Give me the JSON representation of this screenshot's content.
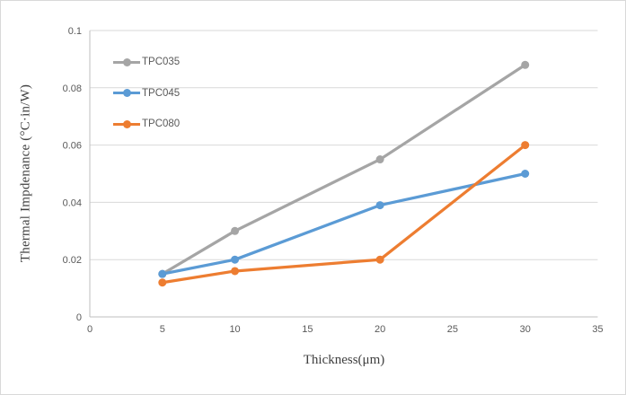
{
  "chart_data": {
    "type": "line",
    "x": [
      5,
      10,
      20,
      30
    ],
    "series": [
      {
        "name": "TPC035",
        "color": "#A5A5A5",
        "values": [
          0.015,
          0.03,
          0.055,
          0.088
        ]
      },
      {
        "name": "TPC045",
        "color": "#5B9BD5",
        "values": [
          0.015,
          0.02,
          0.039,
          0.05
        ]
      },
      {
        "name": "TPC080",
        "color": "#ED7D31",
        "values": [
          0.012,
          0.016,
          0.02,
          0.06
        ]
      }
    ],
    "xlabel": "Thickness(μm)",
    "ylabel": "Thermal Impdenance (°C·in/W)",
    "xlim": [
      0,
      35
    ],
    "ylim": [
      0,
      0.1
    ],
    "xticks": {
      "values": [
        0,
        5,
        10,
        15,
        20,
        25,
        30,
        35
      ],
      "labels": [
        "0",
        "5",
        "10",
        "15",
        "20",
        "25",
        "30",
        "35"
      ]
    },
    "yticks": {
      "values": [
        0,
        0.02,
        0.04,
        0.06,
        0.08,
        0.1
      ],
      "labels": [
        "0",
        "0.02",
        "0.04",
        "0.06",
        "0.08",
        "0.1"
      ]
    },
    "grid": "horizontal",
    "legend_position": "top-left-inside",
    "styles": {
      "gridline_color": "#D9D9D9",
      "axis_color": "#BFBFBF",
      "tick_label_color": "#595959",
      "axis_title_color": "#404040",
      "frame_border_color": "#D9D9D9",
      "background_color": "#FFFFFF"
    }
  }
}
